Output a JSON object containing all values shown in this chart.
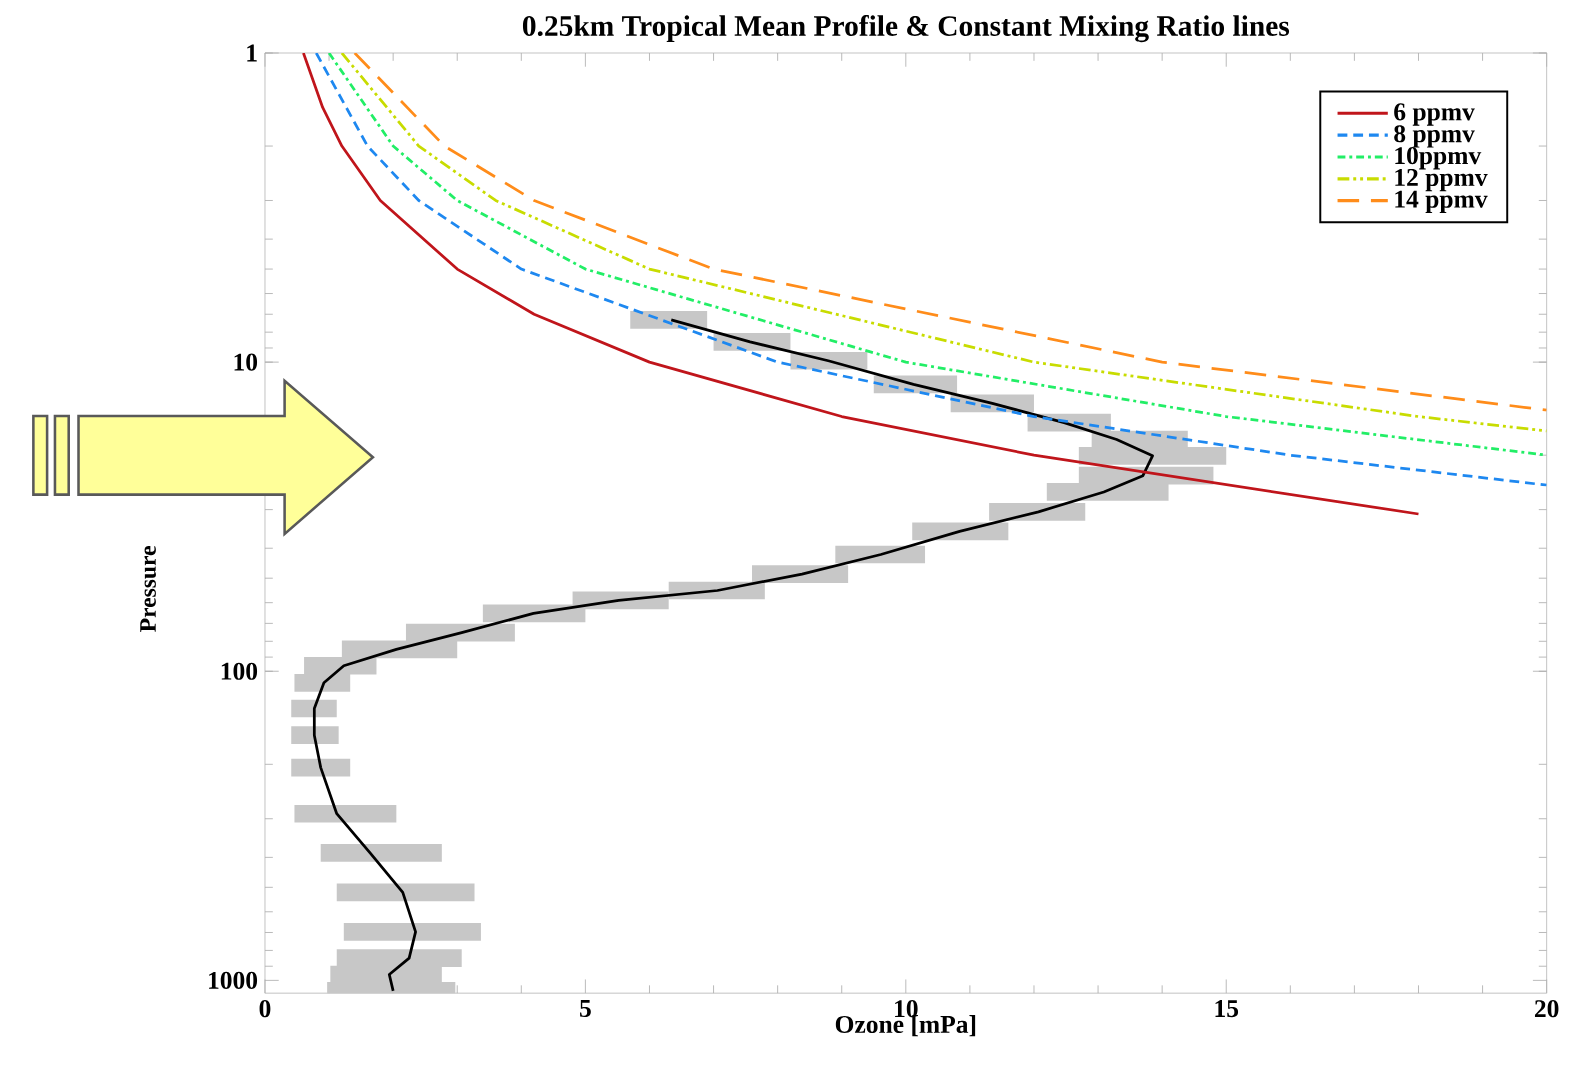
{
  "chart_data": {
    "type": "line",
    "title": "0.25km Tropical Mean Profile & Constant Mixing Ratio lines",
    "xlabel": "Ozone [mPa]",
    "ylabel": "Pressure",
    "xlim": [
      0,
      20
    ],
    "ylim": [
      1100,
      1
    ],
    "xticks": [
      0,
      5,
      10,
      15,
      20
    ],
    "yticks": [
      1,
      10,
      100,
      1000
    ],
    "log": "y",
    "legend": "top right",
    "series": [
      {
        "color": "#000000",
        "line_style": "solid",
        "x": [
          6.34,
          7.57,
          8.79,
          10.12,
          11.35,
          12.47,
          13.29,
          13.85,
          13.7,
          13.09,
          12.07,
          10.84,
          9.61,
          8.38,
          7.06,
          5.52,
          4.19,
          3.07,
          2.05,
          1.23,
          0.92,
          0.77,
          0.77,
          0.87,
          1.12,
          1.64,
          2.15,
          2.35,
          2.25,
          1.94,
          2.0
        ],
        "values": [
          7.3,
          8.6,
          9.9,
          11.8,
          13.6,
          15.7,
          17.8,
          20.1,
          23.3,
          26.3,
          30.5,
          35.3,
          41.9,
          48.5,
          54.8,
          59,
          65,
          75,
          85,
          96,
          109,
          132,
          161,
          205,
          289,
          387,
          519,
          697,
          847,
          957,
          1081
        ],
        "xerrors": [
          [
            5.7,
            6.9
          ],
          [
            7.0,
            8.2
          ],
          [
            8.2,
            9.4
          ],
          [
            9.5,
            10.8
          ],
          [
            10.7,
            12.0
          ],
          [
            11.9,
            13.2
          ],
          [
            12.9,
            14.4
          ],
          [
            12.7,
            15.0
          ],
          [
            12.7,
            14.8
          ],
          [
            12.2,
            14.1
          ],
          [
            11.3,
            12.8
          ],
          [
            10.1,
            11.6
          ],
          [
            8.9,
            10.3
          ],
          [
            7.6,
            9.1
          ],
          [
            6.3,
            7.8
          ],
          [
            4.8,
            6.3
          ],
          [
            3.4,
            5.0
          ],
          [
            2.2,
            3.9
          ],
          [
            1.2,
            3.0
          ],
          [
            0.61,
            1.74
          ],
          [
            0.46,
            1.33
          ],
          [
            0.41,
            1.12
          ],
          [
            0.41,
            1.15
          ],
          [
            0.41,
            1.33
          ],
          [
            0.46,
            2.05
          ],
          [
            0.87,
            2.76
          ],
          [
            1.12,
            3.27
          ],
          [
            1.23,
            3.37
          ],
          [
            1.12,
            3.07
          ],
          [
            1.02,
            2.76
          ],
          [
            0.97,
            2.97
          ]
        ]
      },
      {
        "name": "6 ppmv",
        "color": "#c0151b",
        "line_style": "solid",
        "x": [
          0.6,
          0.9,
          1.2,
          1.8,
          3.0,
          4.2,
          6.0,
          9.0,
          12.0,
          18.0
        ],
        "values": [
          1,
          1.5,
          2,
          3,
          5,
          7,
          10,
          15,
          20,
          31
        ]
      },
      {
        "name": "8 ppmv",
        "color": "#1e88f0",
        "line_style": "dashed",
        "x": [
          0.8,
          1.6,
          2.4,
          4.0,
          8.0,
          12.0,
          16.0,
          20.0
        ],
        "values": [
          1,
          2,
          3,
          5,
          10,
          15,
          20,
          25
        ]
      },
      {
        "name": "10ppmv",
        "color": "#22ee66",
        "line_style": "dashdot",
        "x": [
          1.0,
          2.0,
          3.0,
          5.0,
          10.0,
          15.0,
          20.0
        ],
        "values": [
          1,
          2,
          3,
          5,
          10,
          15,
          20
        ]
      },
      {
        "name": "12 ppmv",
        "color": "#c8dc00",
        "line_style": "dashdotdot",
        "x": [
          1.2,
          2.4,
          3.6,
          6.0,
          12.0,
          18.0,
          20.0
        ],
        "values": [
          1,
          2,
          3,
          5,
          10,
          15,
          16.7
        ]
      },
      {
        "name": "14 ppmv",
        "color": "#ff8c1a",
        "line_style": "longdash",
        "x": [
          1.4,
          2.8,
          4.2,
          7.0,
          14.0,
          20.0
        ],
        "values": [
          1,
          2,
          3,
          5,
          10,
          14.3
        ]
      }
    ]
  }
}
